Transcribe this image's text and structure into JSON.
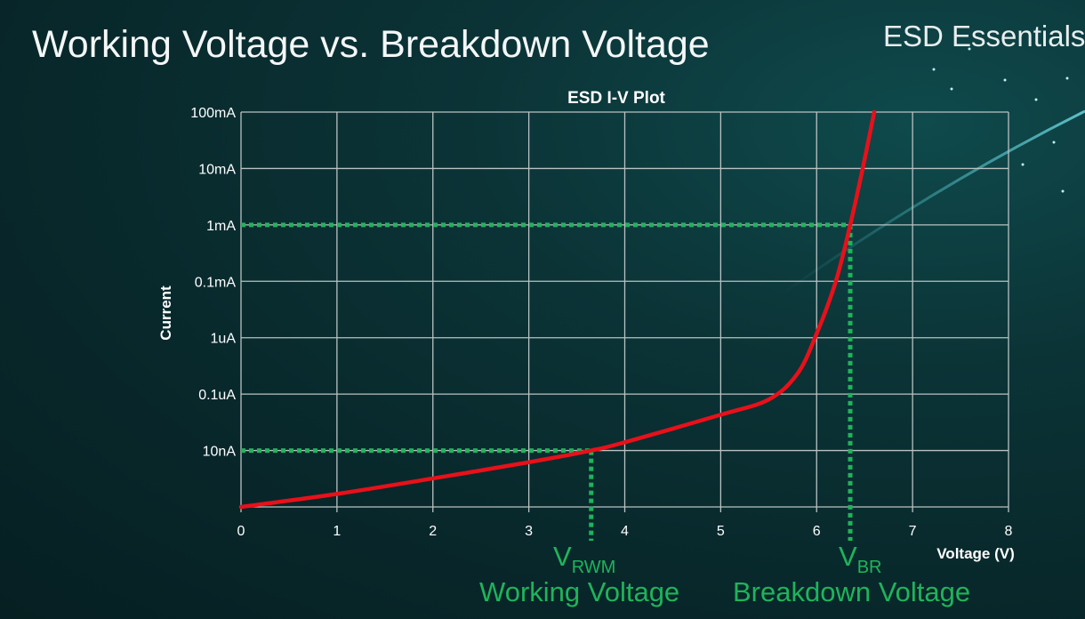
{
  "slide": {
    "title": "Working Voltage vs. Breakdown Voltage",
    "brand": "ESD Essentials"
  },
  "annotations": {
    "vrwm_symbol": "V",
    "vrwm_subscript": "RWM",
    "vrwm_label": "Working Voltage",
    "vbr_symbol": "V",
    "vbr_subscript": "BR",
    "vbr_label": "Breakdown Voltage"
  },
  "colors": {
    "curve": "#e8101a",
    "guides": "#1fb45a",
    "grid": "#b9c2c2"
  },
  "chart_data": {
    "type": "line",
    "title": "ESD I-V Plot",
    "xlabel": "Voltage (V)",
    "ylabel": "Current",
    "xlim": [
      0,
      8
    ],
    "x_ticks": [
      "0",
      "1",
      "2",
      "3",
      "4",
      "5",
      "6",
      "7",
      "8"
    ],
    "y_scale": "log",
    "y_ticks": [
      {
        "label": "100mA",
        "value": 0.1
      },
      {
        "label": "10mA",
        "value": 0.01
      },
      {
        "label": "1mA",
        "value": 0.001
      },
      {
        "label": "0.1mA",
        "value": 0.0001
      },
      {
        "label": "1uA",
        "value": 1e-06
      },
      {
        "label": "0.1uA",
        "value": 1e-07
      },
      {
        "label": "10nA",
        "value": 1e-08
      },
      {
        "label": "",
        "value": 1e-09
      }
    ],
    "grid": true,
    "series": [
      {
        "x": [
          0,
          1,
          2,
          3,
          3.65,
          4,
          5,
          5.5,
          5.8,
          6,
          6.2,
          6.35,
          6.48,
          6.6
        ],
        "y": [
          1e-09,
          1.7e-09,
          3.2e-09,
          6.2e-09,
          1e-08,
          1.4e-08,
          4.3e-08,
          8e-08,
          2.3e-07,
          1.4e-06,
          0.0001,
          0.001,
          0.01,
          0.1
        ]
      }
    ],
    "markers": [
      {
        "name": "VRWM",
        "x": 3.65,
        "y": 1e-08
      },
      {
        "name": "VBR",
        "x": 6.35,
        "y": 0.001
      }
    ]
  }
}
